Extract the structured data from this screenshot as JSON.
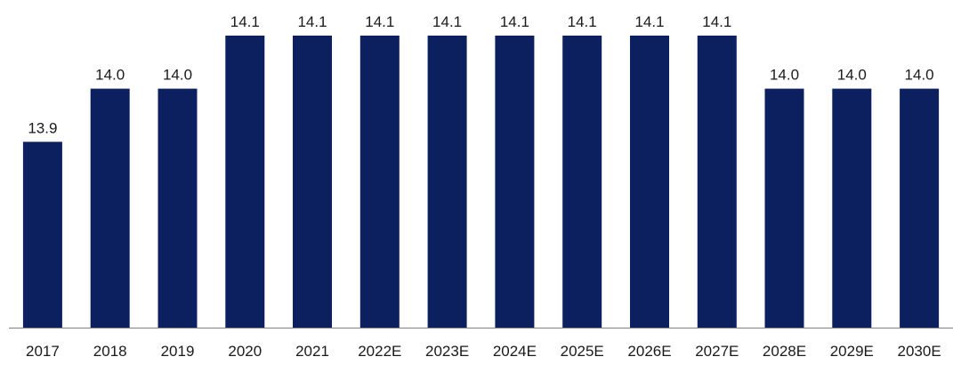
{
  "chart_data": {
    "type": "bar",
    "title": "",
    "xlabel": "",
    "ylabel": "",
    "categories": [
      "2017",
      "2018",
      "2019",
      "2020",
      "2021",
      "2022E",
      "2023E",
      "2024E",
      "2025E",
      "2026E",
      "2027E",
      "2028E",
      "2029E",
      "2030E"
    ],
    "values": [
      13.9,
      14.0,
      14.0,
      14.1,
      14.1,
      14.1,
      14.1,
      14.1,
      14.1,
      14.1,
      14.1,
      14.0,
      14.0,
      14.0
    ],
    "data_labels": [
      "13.9",
      "14.0",
      "14.0",
      "14.1",
      "14.1",
      "14.1",
      "14.1",
      "14.1",
      "14.1",
      "14.1",
      "14.1",
      "14.0",
      "14.0",
      "14.0"
    ],
    "bar_color": "#0c2060",
    "axis_color": "#808080",
    "grid": false,
    "legend": "none"
  }
}
